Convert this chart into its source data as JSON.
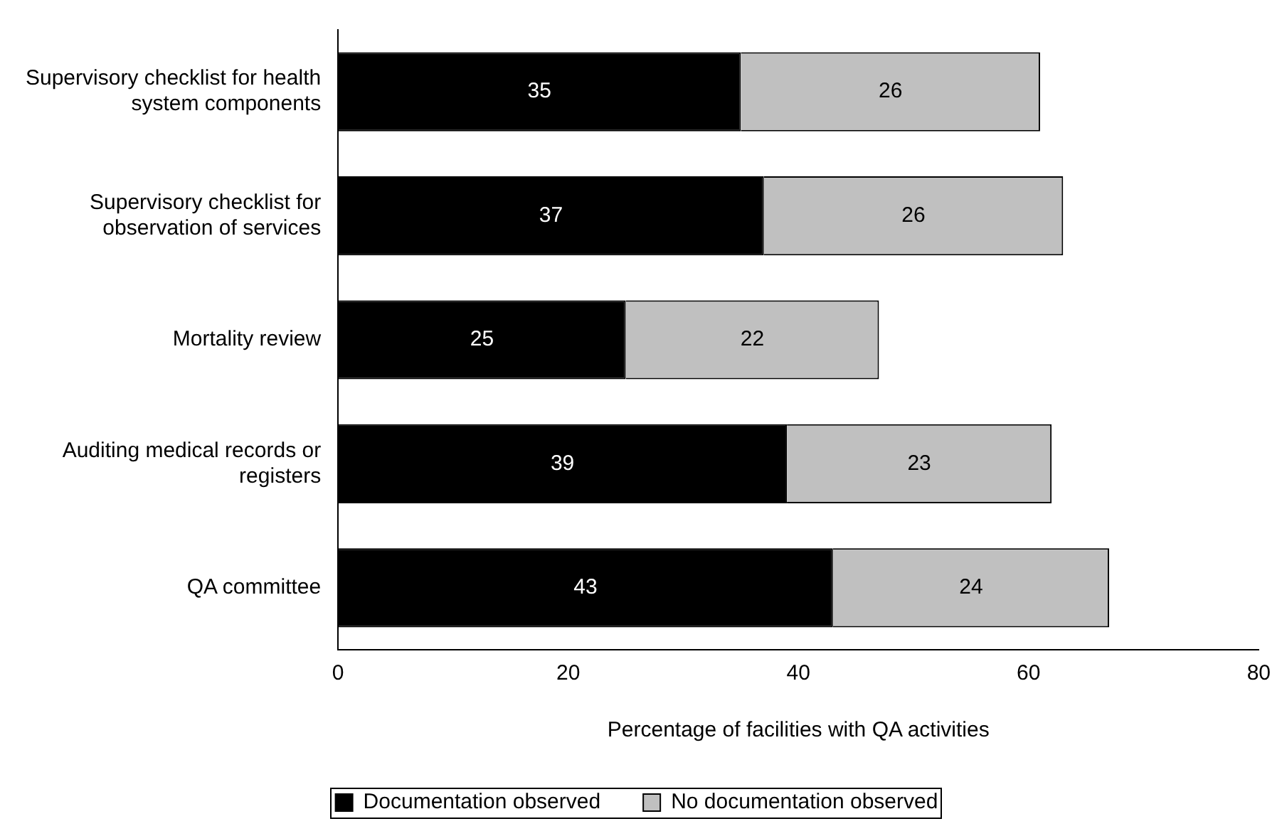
{
  "chart_data": {
    "type": "bar",
    "orientation": "horizontal",
    "stacked": true,
    "xlabel": "Percentage of facilities with QA activities",
    "categories": [
      "Supervisory checklist for health system components",
      "Supervisory checklist for observation of services",
      "Mortality review",
      "Auditing medical records or registers",
      "QA committee"
    ],
    "series": [
      {
        "name": "Documentation observed",
        "color": "#000000",
        "values": [
          35,
          37,
          25,
          39,
          43
        ]
      },
      {
        "name": "No documentation observed",
        "color": "#c0c0c0",
        "values": [
          26,
          26,
          22,
          23,
          24
        ]
      }
    ],
    "xlim": [
      0,
      80
    ],
    "xticks": [
      0,
      20,
      40,
      60,
      80
    ],
    "grid": false,
    "legend": "bottom",
    "data_labels": true
  }
}
